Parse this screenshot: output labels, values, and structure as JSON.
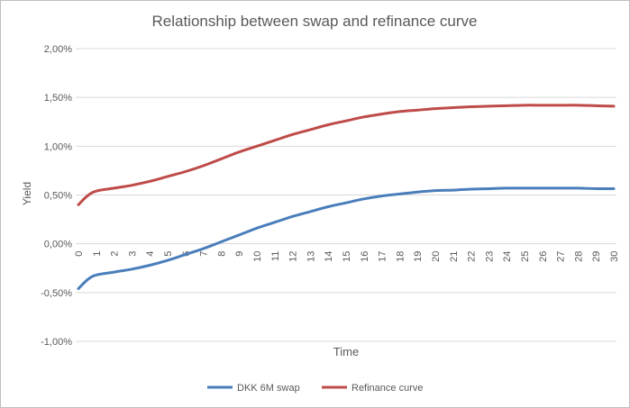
{
  "chart_data": {
    "type": "line",
    "title": "Relationship between swap and refinance curve",
    "xlabel": "Time",
    "ylabel": "Yield",
    "ylim": [
      -1.0,
      2.0
    ],
    "yticks": [
      "2,00%",
      "1,50%",
      "1,00%",
      "0,50%",
      "0,00%",
      "-0,50%",
      "-1,00%"
    ],
    "ytick_values": [
      2.0,
      1.5,
      1.0,
      0.5,
      0.0,
      -0.5,
      -1.0
    ],
    "xlim": [
      0,
      30
    ],
    "x": [
      0,
      0.5,
      1,
      2,
      3,
      4,
      5,
      6,
      7,
      8,
      9,
      10,
      11,
      12,
      13,
      14,
      15,
      16,
      17,
      18,
      19,
      20,
      21,
      22,
      23,
      24,
      25,
      26,
      27,
      28,
      29,
      30
    ],
    "grid": true,
    "legend": "bottom",
    "series": [
      {
        "name": "DKK 6M swap",
        "color": "#4a7ebb",
        "values": [
          -0.46,
          -0.37,
          -0.32,
          -0.29,
          -0.26,
          -0.22,
          -0.17,
          -0.11,
          -0.05,
          0.02,
          0.09,
          0.16,
          0.22,
          0.28,
          0.33,
          0.38,
          0.42,
          0.46,
          0.49,
          0.51,
          0.53,
          0.545,
          0.55,
          0.56,
          0.565,
          0.57,
          0.57,
          0.57,
          0.57,
          0.57,
          0.565,
          0.565
        ]
      },
      {
        "name": "Refinance curve",
        "color": "#be4b48",
        "values": [
          0.4,
          0.49,
          0.54,
          0.57,
          0.6,
          0.64,
          0.69,
          0.74,
          0.8,
          0.87,
          0.94,
          1.0,
          1.06,
          1.12,
          1.17,
          1.22,
          1.26,
          1.3,
          1.33,
          1.355,
          1.37,
          1.385,
          1.395,
          1.405,
          1.41,
          1.415,
          1.42,
          1.42,
          1.42,
          1.42,
          1.415,
          1.41
        ]
      }
    ]
  }
}
